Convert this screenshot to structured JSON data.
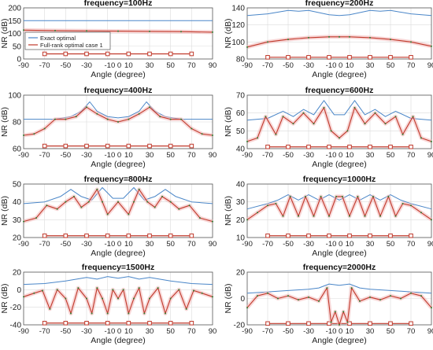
{
  "colors": {
    "exact": "#4a86c8",
    "full": "#c0392b",
    "full_marker": "#2e7d32",
    "grid": "#dcdcdc",
    "band": "#f2b6b6"
  },
  "shared": {
    "xlabel": "Angle (degree)",
    "ylabel": "NR (dB)",
    "x_ticks": [
      "-90",
      "-70",
      "-50",
      "-30",
      "-10 0",
      "10",
      "30",
      "50",
      "70",
      "90"
    ],
    "legend": [
      "Exact optimal",
      "Full-rank optimal case 1"
    ]
  },
  "chart_data": [
    {
      "type": "line",
      "title": "frequency=100Hz",
      "xlabel": "Angle (degree)",
      "ylabel": "NR (dB)",
      "xlim": [
        -90,
        90
      ],
      "ylim": [
        0,
        200
      ],
      "y_ticks": [
        0,
        50,
        100,
        150,
        200
      ],
      "grid": true,
      "legend_position": "bottom-left",
      "series": [
        {
          "name": "Exact optimal",
          "x": [
            -90,
            90
          ],
          "y": [
            150,
            150
          ]
        },
        {
          "name": "Full-rank optimal case 1",
          "x": [
            -90,
            -60,
            -30,
            0,
            30,
            60,
            90
          ],
          "y": [
            113,
            111,
            110,
            109,
            108,
            107,
            105
          ]
        }
      ],
      "marker_row": {
        "y": 20,
        "x": [
          -70,
          -50,
          -30,
          -10,
          10,
          30,
          50,
          70
        ]
      }
    },
    {
      "type": "line",
      "title": "frequency=200Hz",
      "xlabel": "Angle (degree)",
      "ylabel": "NR (dB)",
      "xlim": [
        -90,
        90
      ],
      "ylim": [
        80,
        140
      ],
      "y_ticks": [
        80,
        100,
        120,
        140
      ],
      "grid": true,
      "series": [
        {
          "name": "Exact optimal",
          "x": [
            -90,
            -70,
            -50,
            -40,
            -30,
            -10,
            0,
            10,
            30,
            40,
            50,
            70,
            90
          ],
          "y": [
            131,
            133,
            137,
            136,
            137,
            132,
            131,
            132,
            137,
            136,
            137,
            133,
            131
          ]
        },
        {
          "name": "Full-rank optimal case 1",
          "x": [
            -90,
            -70,
            -50,
            -30,
            -10,
            0,
            10,
            30,
            50,
            70,
            90
          ],
          "y": [
            94,
            100,
            103,
            105,
            106,
            106,
            106,
            105,
            103,
            100,
            95
          ]
        }
      ],
      "marker_row": {
        "y": 82,
        "x": [
          -70,
          -50,
          -30,
          -10,
          10,
          30,
          50,
          70
        ]
      }
    },
    {
      "type": "line",
      "title": "frequency=400Hz",
      "xlabel": "Angle (degree)",
      "ylabel": "NR (dB)",
      "xlim": [
        -90,
        90
      ],
      "ylim": [
        60,
        100
      ],
      "y_ticks": [
        60,
        80,
        100
      ],
      "grid": true,
      "series": [
        {
          "name": "Exact optimal",
          "x": [
            -90,
            -60,
            -45,
            -35,
            -27,
            -20,
            -10,
            0,
            10,
            20,
            27,
            35,
            45,
            60,
            90
          ],
          "y": [
            82,
            82,
            84,
            88,
            95,
            88,
            84,
            83,
            84,
            88,
            95,
            88,
            84,
            82,
            82
          ]
        },
        {
          "name": "Full-rank optimal case 1",
          "x": [
            -90,
            -80,
            -70,
            -60,
            -50,
            -40,
            -30,
            -20,
            -10,
            0,
            10,
            20,
            30,
            40,
            50,
            60,
            70,
            80,
            90
          ],
          "y": [
            70,
            71,
            75,
            82,
            82,
            84,
            91,
            86,
            82,
            80,
            82,
            86,
            91,
            84,
            82,
            82,
            75,
            71,
            70
          ]
        }
      ],
      "marker_row": {
        "y": 62,
        "x": [
          -70,
          -50,
          -30,
          -10,
          10,
          30,
          50,
          70
        ]
      }
    },
    {
      "type": "line",
      "title": "frequency=600Hz",
      "xlabel": "Angle (degree)",
      "ylabel": "NR (dB)",
      "xlim": [
        -90,
        90
      ],
      "ylim": [
        40,
        70
      ],
      "y_ticks": [
        40,
        50,
        60,
        70
      ],
      "grid": true,
      "series": [
        {
          "name": "Exact optimal",
          "x": [
            -90,
            -70,
            -55,
            -45,
            -35,
            -25,
            -15,
            -5,
            5,
            15,
            25,
            35,
            45,
            55,
            70,
            90
          ],
          "y": [
            56,
            57,
            61,
            58,
            62,
            59,
            67,
            59,
            59,
            67,
            59,
            62,
            58,
            61,
            57,
            56
          ]
        },
        {
          "name": "Full-rank optimal case 1",
          "x": [
            -90,
            -80,
            -72,
            -62,
            -55,
            -45,
            -35,
            -25,
            -15,
            -8,
            0,
            8,
            15,
            25,
            35,
            45,
            55,
            62,
            72,
            80,
            90
          ],
          "y": [
            44,
            46,
            58,
            48,
            58,
            54,
            60,
            54,
            63,
            50,
            46,
            50,
            63,
            54,
            60,
            54,
            58,
            48,
            58,
            46,
            44
          ]
        }
      ],
      "marker_row": {
        "y": 41,
        "x": [
          -70,
          -50,
          -30,
          -10,
          10,
          30,
          50,
          70
        ]
      }
    },
    {
      "type": "line",
      "title": "frequency=800Hz",
      "xlabel": "Angle (degree)",
      "ylabel": "NR (dB)",
      "xlim": [
        -90,
        90
      ],
      "ylim": [
        20,
        50
      ],
      "y_ticks": [
        20,
        30,
        40,
        50
      ],
      "grid": true,
      "series": [
        {
          "name": "Exact optimal",
          "x": [
            -90,
            -70,
            -55,
            -45,
            -35,
            -25,
            -15,
            -5,
            5,
            15,
            25,
            35,
            45,
            55,
            70,
            90
          ],
          "y": [
            39,
            40,
            43,
            47,
            43,
            41,
            48,
            42,
            42,
            48,
            41,
            43,
            47,
            43,
            40,
            39
          ]
        },
        {
          "name": "Full-rank optimal case 1",
          "x": [
            -90,
            -78,
            -68,
            -58,
            -50,
            -42,
            -35,
            -28,
            -20,
            -15,
            -10,
            0,
            10,
            15,
            20,
            28,
            35,
            42,
            50,
            58,
            68,
            78,
            90
          ],
          "y": [
            29,
            31,
            38,
            36,
            40,
            43,
            37,
            40,
            47,
            40,
            33,
            40,
            33,
            40,
            47,
            40,
            37,
            43,
            40,
            36,
            38,
            31,
            29
          ]
        }
      ],
      "marker_row": {
        "y": 21,
        "x": [
          -70,
          -50,
          -30,
          -10,
          10,
          30,
          50,
          70
        ]
      }
    },
    {
      "type": "line",
      "title": "frequency=1000Hz",
      "xlabel": "Angle (degree)",
      "ylabel": "NR (dB)",
      "xlim": [
        -90,
        90
      ],
      "ylim": [
        10,
        40
      ],
      "y_ticks": [
        10,
        20,
        30,
        40
      ],
      "grid": true,
      "series": [
        {
          "name": "Exact optimal",
          "x": [
            -90,
            -70,
            -60,
            -50,
            -40,
            -30,
            -20,
            -10,
            0,
            10,
            20,
            30,
            40,
            50,
            60,
            70,
            90
          ],
          "y": [
            26,
            29,
            31,
            34,
            31,
            34,
            31,
            34,
            31,
            34,
            31,
            34,
            31,
            34,
            31,
            29,
            26
          ]
        },
        {
          "name": "Full-rank optimal case 1",
          "x": [
            -90,
            -80,
            -70,
            -62,
            -55,
            -48,
            -40,
            -33,
            -25,
            -18,
            -10,
            -3,
            3,
            10,
            18,
            25,
            33,
            40,
            48,
            55,
            62,
            70,
            80,
            90
          ],
          "y": [
            20,
            24,
            28,
            29,
            22,
            33,
            22,
            33,
            22,
            33,
            22,
            33,
            33,
            22,
            33,
            22,
            33,
            22,
            33,
            22,
            29,
            28,
            24,
            20
          ]
        }
      ],
      "marker_row": {
        "y": 11,
        "x": [
          -70,
          -50,
          -30,
          -10,
          10,
          30,
          50,
          70
        ]
      }
    },
    {
      "type": "line",
      "title": "frequency=1500Hz",
      "xlabel": "Angle (degree)",
      "ylabel": "NR (dB)",
      "xlim": [
        -90,
        90
      ],
      "ylim": [
        -40,
        20
      ],
      "y_ticks": [
        -40,
        -20,
        0,
        20
      ],
      "grid": true,
      "series": [
        {
          "name": "Exact optimal",
          "x": [
            -90,
            -70,
            -50,
            -30,
            -20,
            -10,
            0,
            10,
            20,
            30,
            50,
            70,
            90
          ],
          "y": [
            6,
            7,
            10,
            14,
            12,
            15,
            13,
            15,
            12,
            14,
            10,
            7,
            6
          ]
        },
        {
          "name": "Full-rank optimal case 1",
          "x": [
            -90,
            -80,
            -72,
            -65,
            -58,
            -50,
            -45,
            -38,
            -30,
            -25,
            -20,
            -15,
            -10,
            -5,
            0,
            5,
            10,
            15,
            20,
            25,
            30,
            38,
            45,
            50,
            58,
            65,
            72,
            80,
            90
          ],
          "y": [
            -8,
            -4,
            -1,
            -22,
            0,
            -10,
            -27,
            2,
            -10,
            -27,
            2,
            -10,
            -27,
            0,
            -10,
            0,
            -27,
            -10,
            2,
            -27,
            -10,
            2,
            -27,
            -10,
            0,
            -22,
            -1,
            -4,
            -8
          ]
        }
      ],
      "marker_row": {
        "y": -38,
        "x": [
          -70,
          -50,
          -30,
          -10,
          10,
          30,
          50,
          70
        ]
      }
    },
    {
      "type": "line",
      "title": "frequency=2000Hz",
      "xlabel": "Angle (degree)",
      "ylabel": "NR (dB)",
      "xlim": [
        -90,
        90
      ],
      "ylim": [
        -20,
        20
      ],
      "y_ticks": [
        -20,
        0,
        20
      ],
      "grid": true,
      "series": [
        {
          "name": "Exact optimal",
          "x": [
            -90,
            -70,
            -50,
            -30,
            -20,
            -10,
            0,
            10,
            20,
            30,
            50,
            70,
            90
          ],
          "y": [
            4,
            5,
            6,
            7,
            8,
            11,
            10,
            11,
            8,
            7,
            6,
            5,
            4
          ]
        },
        {
          "name": "Full-rank optimal case 1",
          "x": [
            -90,
            -80,
            -70,
            -60,
            -50,
            -40,
            -30,
            -20,
            -12,
            -8,
            -4,
            0,
            4,
            8,
            12,
            20,
            30,
            40,
            50,
            60,
            70,
            80,
            90
          ],
          "y": [
            -7,
            2,
            4,
            0,
            2,
            -1,
            1,
            -2,
            8,
            -18,
            -10,
            -20,
            -10,
            -18,
            8,
            -2,
            1,
            -1,
            2,
            0,
            4,
            2,
            -7
          ]
        }
      ],
      "marker_row": {
        "y": -19,
        "x": [
          -70,
          -50,
          -30,
          -10,
          10,
          30,
          50,
          70
        ]
      }
    }
  ]
}
